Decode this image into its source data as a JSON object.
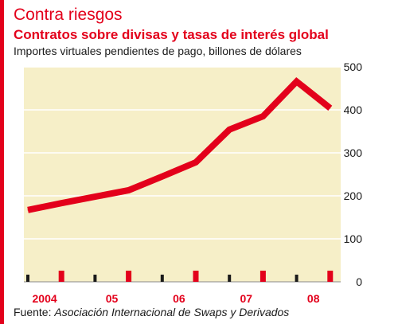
{
  "header": {
    "title": "Contra riesgos",
    "subtitle": "Contratos sobre divisas y tasas de interés global",
    "units": "Importes virtuales pendientes de pago, billones de dólares"
  },
  "footer": {
    "source_label": "Fuente:",
    "source_text": "Asociación Internacional de Swaps y Derivados"
  },
  "colors": {
    "accent": "#e3001b",
    "plot_background": "#f6efc8",
    "gridline": "#ffffff",
    "line": "#e3001b",
    "tick_dark": "#1a1a1a"
  },
  "chart_data": {
    "type": "line",
    "title": "Contra riesgos",
    "subtitle": "Contratos sobre divisas y tasas de interés global",
    "ylabel": "Importes virtuales pendientes de pago, billones de dólares",
    "xlabel": "",
    "x_tick_labels": [
      "2004",
      "05",
      "06",
      "07",
      "08"
    ],
    "y_ticks": [
      0,
      100,
      200,
      300,
      400,
      500
    ],
    "ylim": [
      0,
      500
    ],
    "y_axis_side": "right",
    "grid": "horizontal",
    "x_axis_ticks": "half-year markers, alternating dark and red",
    "x": [
      "2004-H1",
      "2004-H2",
      "2005-H1",
      "2005-H2",
      "2006-H1",
      "2006-H2",
      "2007-H1",
      "2007-H2",
      "2008-H1",
      "2008-H2"
    ],
    "series": [
      {
        "values": [
          167,
          183,
          198,
          213,
          245,
          278,
          354,
          385,
          466,
          404
        ]
      }
    ]
  }
}
